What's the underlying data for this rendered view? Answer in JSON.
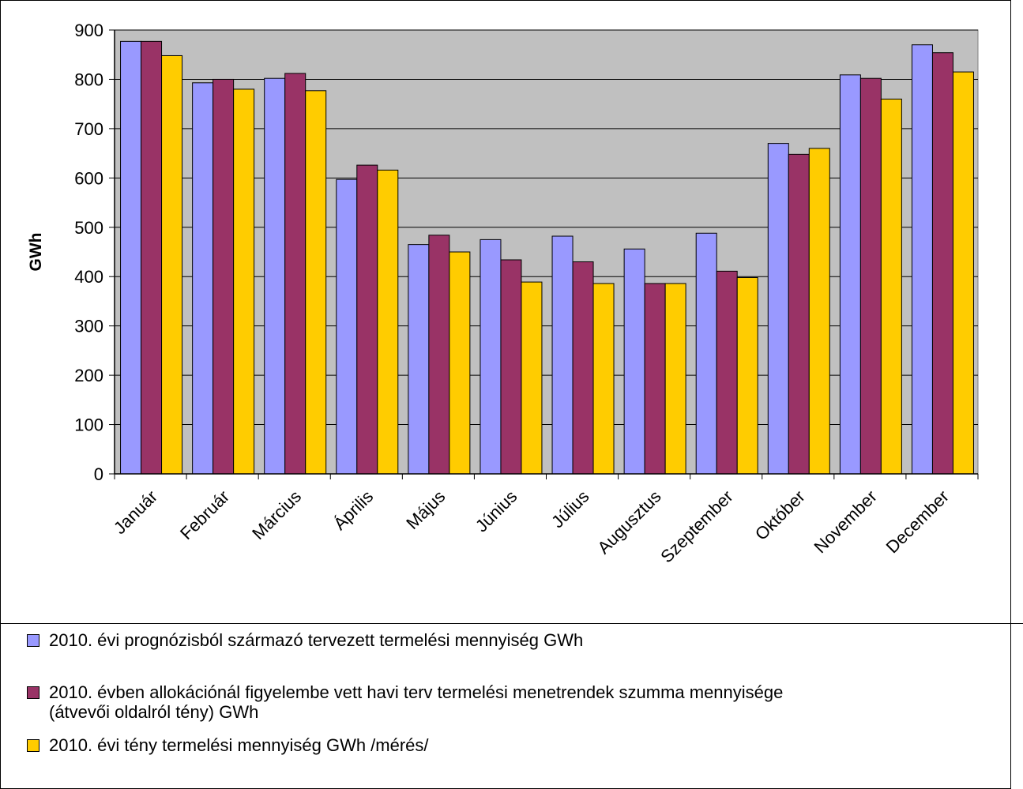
{
  "chart_data": {
    "type": "bar",
    "title": "",
    "xlabel": "",
    "ylabel": "GWh",
    "ylim": [
      0,
      900
    ],
    "yticks": [
      0,
      100,
      200,
      300,
      400,
      500,
      600,
      700,
      800,
      900
    ],
    "grid": true,
    "legend_position": "bottom",
    "plot_background": "#C0C0C0",
    "categories": [
      "Január",
      "Február",
      "Március",
      "Április",
      "Május",
      "Június",
      "Július",
      "Augusztus",
      "Szeptember",
      "Október",
      "November",
      "December"
    ],
    "series": [
      {
        "name": "2010. évi  prognózisból származó tervezett termelési mennyiség GWh",
        "color": "#9999FF",
        "values": [
          877,
          793,
          802,
          597,
          465,
          475,
          482,
          456,
          488,
          670,
          809,
          870
        ]
      },
      {
        "name": "2010. évben allokációnál figyelembe vett havi terv termelési menetrendek szumma mennyisége (átvevői oldalról tény) GWh",
        "color": "#993366",
        "values": [
          877,
          800,
          812,
          626,
          484,
          434,
          430,
          386,
          411,
          648,
          802,
          854
        ]
      },
      {
        "name": "2010. évi tény termelési mennyiség GWh /mérés/",
        "color": "#FFCC00",
        "values": [
          848,
          780,
          777,
          616,
          450,
          389,
          386,
          386,
          398,
          660,
          760,
          815
        ]
      }
    ]
  },
  "legend": {
    "item1_text": "2010. évi  prognózisból származó tervezett termelési mennyiség GWh",
    "item2_line1": "2010. évben allokációnál figyelembe vett havi terv termelési menetrendek szumma mennyisége",
    "item2_line2": "(átvevői oldalról tény) GWh",
    "item3_text": "2010. évi tény termelési mennyiség GWh /mérés/"
  }
}
